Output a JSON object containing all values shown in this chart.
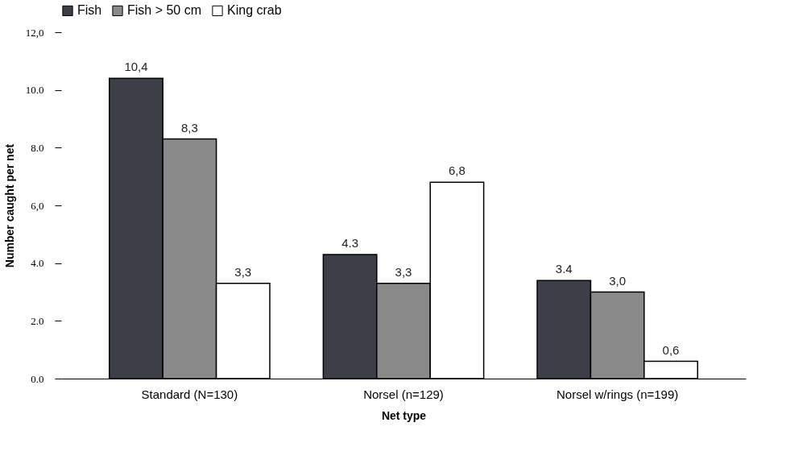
{
  "chart_data": {
    "type": "bar",
    "xlabel": "Net type",
    "ylabel": "Number caught per net",
    "categories": [
      "Standard (N=130)",
      "Norsel (n=129)",
      "Norsel w/rings (n=199)"
    ],
    "series": [
      {
        "name": "Fish",
        "color": "#3c3f47",
        "values": [
          10.4,
          4.3,
          3.4
        ],
        "value_labels": [
          "10,4",
          "4.3",
          "3.4"
        ]
      },
      {
        "name": "Fish > 50 cm",
        "color": "#8a8a8a",
        "values": [
          8.3,
          3.3,
          3.0
        ],
        "value_labels": [
          "8,3",
          "3,3",
          "3,0"
        ]
      },
      {
        "name": "King crab",
        "color": "#ffffff",
        "values": [
          3.3,
          6.8,
          0.6
        ],
        "value_labels": [
          "3,3",
          "6,8",
          "0,6"
        ]
      }
    ],
    "ylim": [
      0,
      12
    ],
    "yticks": [
      {
        "value": 0,
        "label": "0.0"
      },
      {
        "value": 2,
        "label": "2.0"
      },
      {
        "value": 4,
        "label": "4.0"
      },
      {
        "value": 6,
        "label": "6,0"
      },
      {
        "value": 8,
        "label": "8.0"
      },
      {
        "value": 10,
        "label": "10.0"
      },
      {
        "value": 12,
        "label": "12,0"
      }
    ],
    "legend": "top",
    "grid": false
  }
}
